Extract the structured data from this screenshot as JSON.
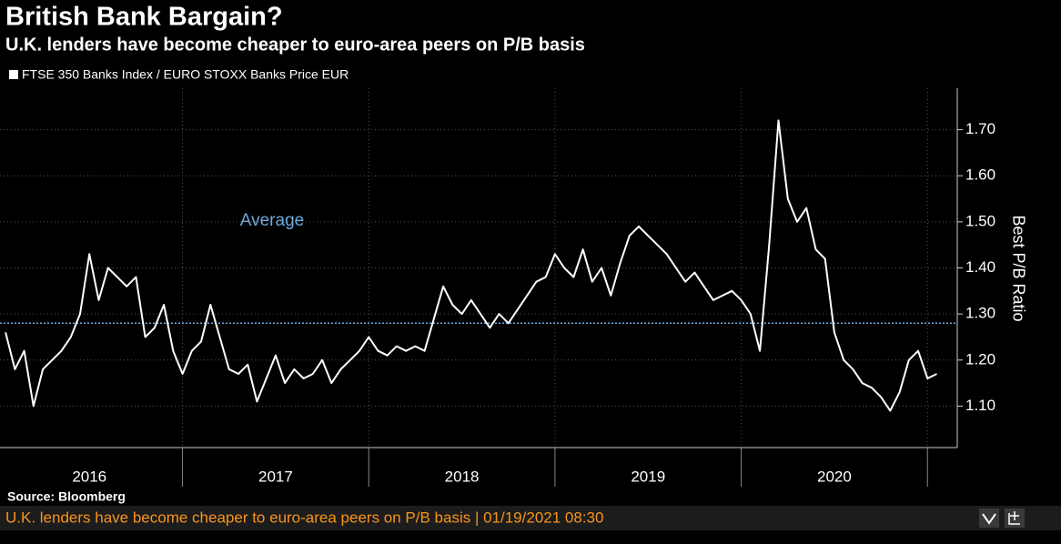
{
  "chart_data": {
    "type": "line",
    "title": "British Bank Bargain?",
    "subtitle": "U.K. lenders have become cheaper to euro-area peers on P/B basis",
    "ylabel": "Best P/B Ratio",
    "source": "Source: Bloomberg",
    "footer": "U.K. lenders have become cheaper to euro-area peers on P/B basis | 01/19/2021 08:30",
    "annotation": {
      "text": "Average",
      "value": 1.28,
      "color": "#6fa8dc"
    },
    "x": [
      2016.05,
      2016.1,
      2016.15,
      2016.2,
      2016.25,
      2016.3,
      2016.35,
      2016.4,
      2016.45,
      2016.5,
      2016.55,
      2016.6,
      2016.65,
      2016.7,
      2016.75,
      2016.8,
      2016.85,
      2016.9,
      2016.95,
      2017.0,
      2017.05,
      2017.1,
      2017.15,
      2017.2,
      2017.25,
      2017.3,
      2017.35,
      2017.4,
      2017.45,
      2017.5,
      2017.55,
      2017.6,
      2017.65,
      2017.7,
      2017.75,
      2017.8,
      2017.85,
      2017.9,
      2017.95,
      2018.0,
      2018.05,
      2018.1,
      2018.15,
      2018.2,
      2018.25,
      2018.3,
      2018.35,
      2018.4,
      2018.45,
      2018.5,
      2018.55,
      2018.6,
      2018.65,
      2018.7,
      2018.75,
      2018.8,
      2018.85,
      2018.9,
      2018.95,
      2019.0,
      2019.05,
      2019.1,
      2019.15,
      2019.2,
      2019.25,
      2019.3,
      2019.35,
      2019.4,
      2019.45,
      2019.5,
      2019.55,
      2019.6,
      2019.65,
      2019.7,
      2019.75,
      2019.8,
      2019.85,
      2019.9,
      2019.95,
      2020.0,
      2020.05,
      2020.1,
      2020.15,
      2020.2,
      2020.25,
      2020.3,
      2020.35,
      2020.4,
      2020.45,
      2020.5,
      2020.55,
      2020.6,
      2020.65,
      2020.7,
      2020.75,
      2020.8,
      2020.85,
      2020.9,
      2020.95,
      2021.0,
      2021.05
    ],
    "series": [
      {
        "name": "FTSE 350 Banks Index / EURO STOXX Banks Price EUR",
        "color": "#ffffff",
        "values": [
          1.26,
          1.18,
          1.22,
          1.1,
          1.18,
          1.2,
          1.22,
          1.25,
          1.3,
          1.43,
          1.33,
          1.4,
          1.38,
          1.36,
          1.38,
          1.25,
          1.27,
          1.32,
          1.22,
          1.17,
          1.22,
          1.24,
          1.32,
          1.25,
          1.18,
          1.17,
          1.19,
          1.11,
          1.16,
          1.21,
          1.15,
          1.18,
          1.16,
          1.17,
          1.2,
          1.15,
          1.18,
          1.2,
          1.22,
          1.25,
          1.22,
          1.21,
          1.23,
          1.22,
          1.23,
          1.22,
          1.29,
          1.36,
          1.32,
          1.3,
          1.33,
          1.3,
          1.27,
          1.3,
          1.28,
          1.31,
          1.34,
          1.37,
          1.38,
          1.43,
          1.4,
          1.38,
          1.44,
          1.37,
          1.4,
          1.34,
          1.41,
          1.47,
          1.49,
          1.47,
          1.45,
          1.43,
          1.4,
          1.37,
          1.39,
          1.36,
          1.33,
          1.34,
          1.35,
          1.33,
          1.3,
          1.22,
          1.45,
          1.72,
          1.55,
          1.5,
          1.53,
          1.44,
          1.42,
          1.26,
          1.2,
          1.18,
          1.15,
          1.14,
          1.12,
          1.09,
          1.13,
          1.2,
          1.22,
          1.16,
          1.17
        ]
      }
    ],
    "xlim": [
      2016.02,
      2021.16
    ],
    "xticks": [
      {
        "value": 2016.5,
        "label": "2016"
      },
      {
        "value": 2017.5,
        "label": "2017"
      },
      {
        "value": 2018.5,
        "label": "2018"
      },
      {
        "value": 2019.5,
        "label": "2019"
      },
      {
        "value": 2020.5,
        "label": "2020"
      }
    ],
    "ylim": [
      1.01,
      1.79
    ],
    "yticks": [
      {
        "value": 1.1,
        "label": "1.10"
      },
      {
        "value": 1.2,
        "label": "1.20"
      },
      {
        "value": 1.3,
        "label": "1.30"
      },
      {
        "value": 1.4,
        "label": "1.40"
      },
      {
        "value": 1.5,
        "label": "1.50"
      },
      {
        "value": 1.6,
        "label": "1.60"
      },
      {
        "value": 1.7,
        "label": "1.70"
      }
    ],
    "grid": true
  }
}
